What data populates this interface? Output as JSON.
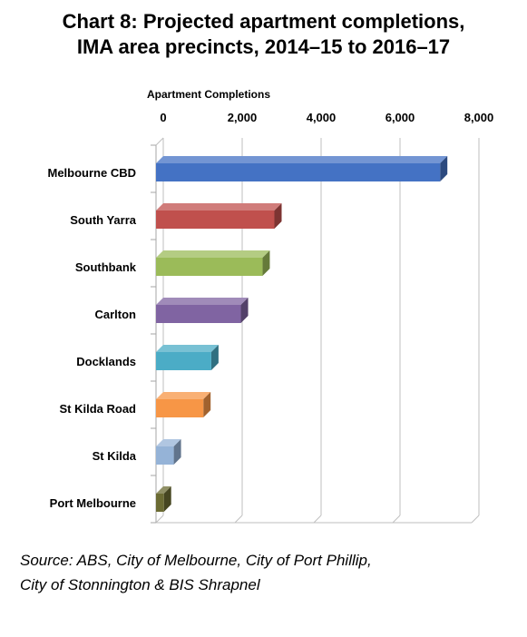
{
  "title_line1": "Chart 8: Projected apartment completions,",
  "title_line2": "IMA area precincts, 2014–15 to 2016–17",
  "source_line1": "Source: ABS, City of Melbourne, City of Port Phillip,",
  "source_line2": "City of Stonnington & BIS Shrapnel",
  "chart_data": {
    "type": "bar",
    "orientation": "horizontal",
    "title": "Chart 8: Projected apartment completions, IMA area precincts, 2014–15 to 2016–17",
    "xlabel": "Apartment Completions",
    "ylabel": "",
    "xlim": [
      0,
      8000
    ],
    "x_ticks": [
      0,
      2000,
      4000,
      6000,
      8000
    ],
    "x_tick_labels": [
      "0",
      "2,000",
      "4,000",
      "6,000",
      "8,000"
    ],
    "axis_position": "top",
    "grid": true,
    "categories": [
      "Melbourne CBD",
      "South Yarra",
      "Southbank",
      "Carlton",
      "Docklands",
      "St Kilda Road",
      "St Kilda",
      "Port Melbourne"
    ],
    "values": [
      7200,
      3000,
      2700,
      2150,
      1400,
      1200,
      450,
      200
    ],
    "colors": [
      "#4472C4",
      "#C0504D",
      "#9BBB59",
      "#8064A2",
      "#4BACC6",
      "#F79646",
      "#95B3D7",
      "#6B6B33"
    ]
  }
}
